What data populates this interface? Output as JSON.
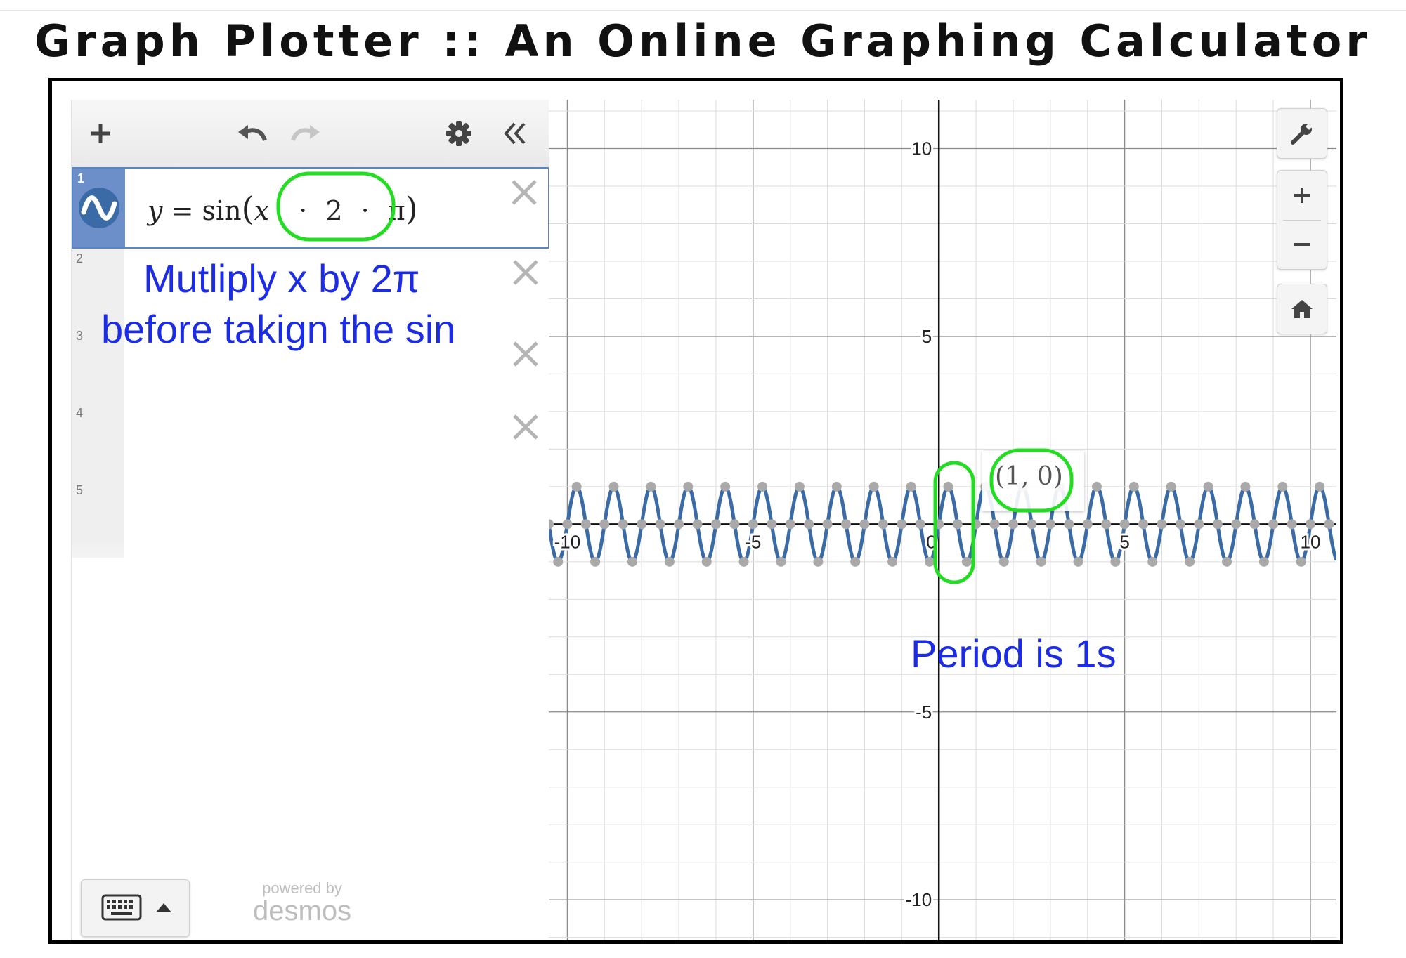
{
  "page": {
    "title": "Graph Plotter :: An Online Graphing Calculator"
  },
  "toolbar": {
    "add": "+",
    "undo": "undo",
    "redo": "redo",
    "settings": "settings",
    "collapse": "«"
  },
  "expressions": [
    {
      "index": "1",
      "latex_text": "y = sin(x · 2 · π)",
      "parts": {
        "y": "y",
        "eq": "=",
        "fn": "sin",
        "x": "x",
        "dot": "·",
        "two": "2",
        "pi": "π"
      }
    },
    {
      "index": "2"
    },
    {
      "index": "3"
    },
    {
      "index": "4"
    },
    {
      "index": "5"
    }
  ],
  "annotations": {
    "left_line1": "Mutliply x by 2π",
    "left_line2": "before takign the sin",
    "period": "Period is 1s",
    "point_label": "(1, 0)"
  },
  "footer": {
    "powered_by": "powered by",
    "brand": "desmos"
  },
  "graph_controls": {
    "wrench": "wrench-icon",
    "zoom_in": "+",
    "zoom_out": "−",
    "home": "home-icon"
  },
  "colors": {
    "curve": "#3b6ba6",
    "point": "#a9a9a9",
    "highlight": "#22dd22",
    "note": "#1b2be6"
  },
  "chart_data": {
    "type": "line",
    "expression": "y = sin(x · 2 · π)",
    "xlim": [
      -10.5,
      10.7
    ],
    "ylim": [
      -11.1,
      11.3
    ],
    "x_ticks": [
      -10,
      -5,
      0,
      5,
      10
    ],
    "y_ticks": [
      -10,
      -5,
      5,
      10
    ],
    "x_tick_labels": [
      "-10",
      "-5",
      "0",
      "5",
      "10"
    ],
    "y_tick_labels": [
      "-10",
      "-5",
      "5",
      "10"
    ],
    "grid": true,
    "minor_grid_step": 1,
    "major_grid_step": 5,
    "series": [
      {
        "function": "sin(2*pi*x)",
        "period": 1,
        "amplitude": 1
      }
    ],
    "marked_point": [
      1,
      0
    ]
  }
}
